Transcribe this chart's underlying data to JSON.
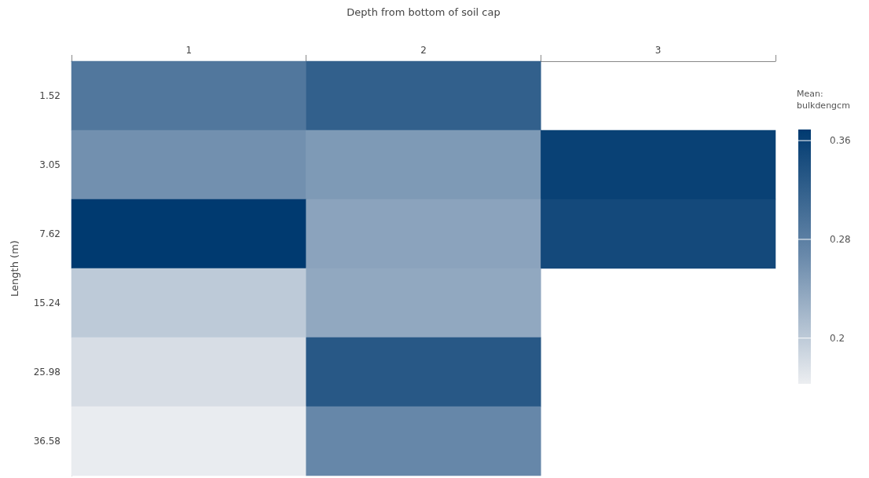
{
  "chart_data": {
    "type": "heatmap",
    "xlabel": "Depth from bottom of soil cap",
    "ylabel": "Length (m)",
    "clabel": "Mean: bulkdengcm",
    "categories": [
      "1",
      "2",
      "3"
    ],
    "y_categories": [
      "1.52",
      "3.05",
      "7.62",
      "15.24",
      "25.98",
      "36.58"
    ],
    "cells": [
      [
        0.29,
        0.32,
        null
      ],
      [
        0.26,
        0.25,
        0.36
      ],
      [
        0.37,
        0.24,
        0.35
      ],
      [
        0.2,
        0.235,
        null
      ],
      [
        0.18,
        0.33,
        null
      ],
      [
        0.165,
        0.27,
        null
      ]
    ],
    "clim": [
      0.163,
      0.369
    ],
    "cticks": [
      0.2,
      0.28,
      0.36
    ]
  }
}
